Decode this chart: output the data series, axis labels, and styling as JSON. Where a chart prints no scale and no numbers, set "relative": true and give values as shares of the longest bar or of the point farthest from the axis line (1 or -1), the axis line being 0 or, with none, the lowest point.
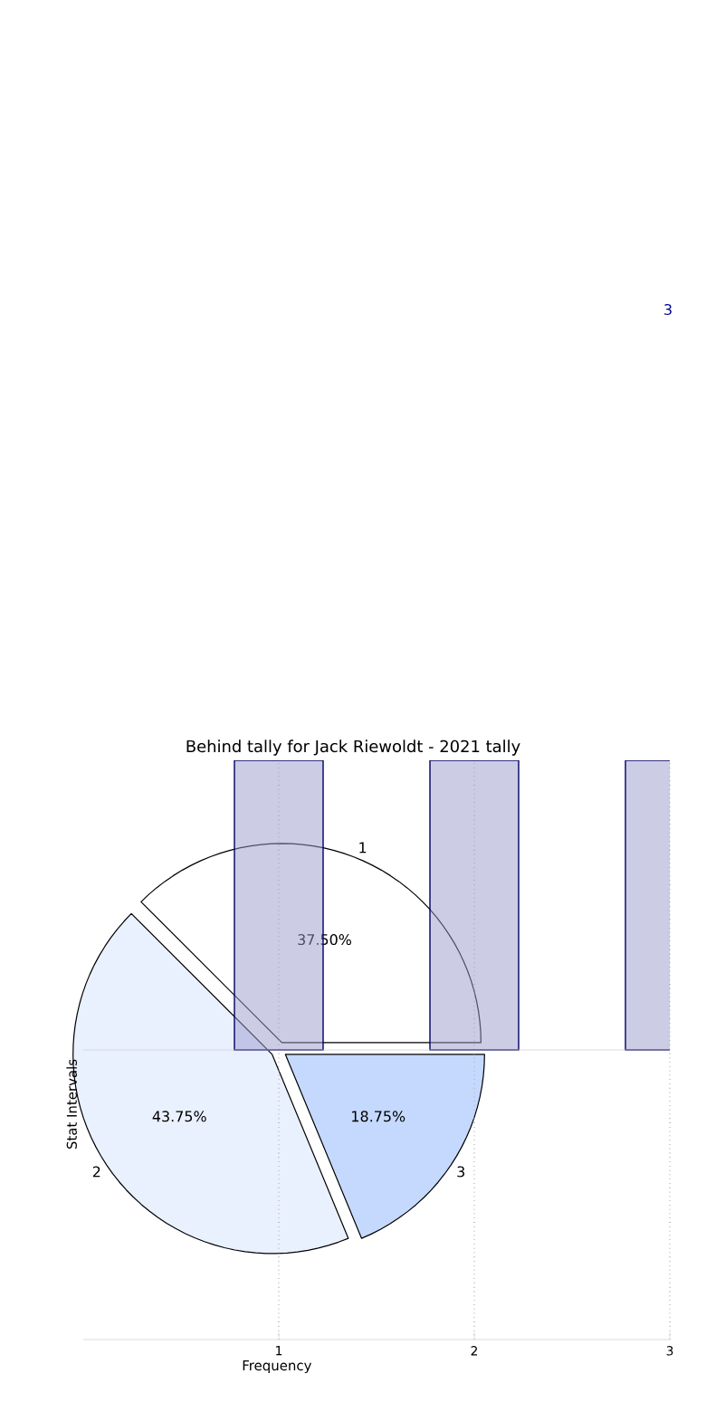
{
  "chart_data": [
    {
      "type": "pie",
      "title": "Behind tally for Jack Riewoldt - 2021 tally",
      "categories": [
        "1",
        "2",
        "3"
      ],
      "values": [
        37.5,
        43.75,
        18.75
      ],
      "colors": [
        "#ffffff",
        "#eaf1fe",
        "#c5d9fe"
      ],
      "value_labels": [
        "37.50%",
        "43.75%",
        "18.75%"
      ]
    },
    {
      "type": "bar",
      "x": [
        1,
        2,
        3
      ],
      "values": [
        1,
        1,
        1
      ],
      "relative": true,
      "color": "#9999cc",
      "xlim": [
        0,
        3
      ],
      "xticks": [
        1,
        2,
        3
      ],
      "xlabel": "Frequency",
      "ylabel": "Stat Intervals",
      "grid": "x",
      "tick_labels": "x",
      "annotations": [
        "3"
      ]
    }
  ]
}
